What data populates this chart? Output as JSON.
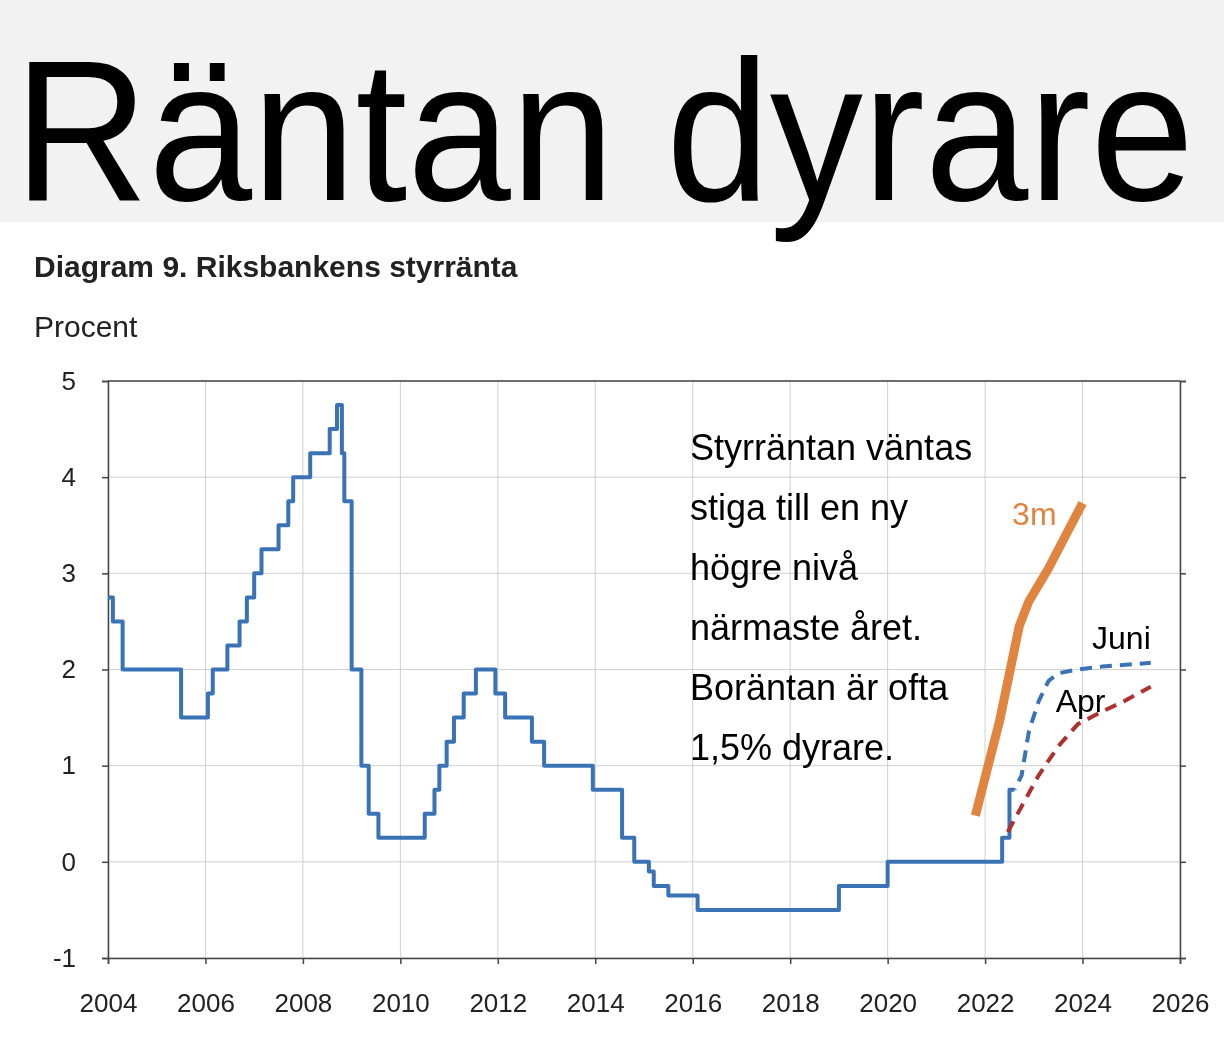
{
  "chart_data": {
    "type": "line",
    "title": "Räntan dyrare",
    "subtitle": "Diagram 9. Riksbankens styrränta",
    "ylabel": "Procent",
    "xlim": [
      2004,
      2026
    ],
    "xticks": [
      2004,
      2006,
      2008,
      2010,
      2012,
      2014,
      2016,
      2018,
      2020,
      2022,
      2024,
      2026
    ],
    "ylim": [
      -1,
      5
    ],
    "yticks": [
      -1,
      0,
      1,
      2,
      3,
      4,
      5
    ],
    "grid": true,
    "series": [
      {
        "type": "step",
        "color": "#3a73b5",
        "line_style": "solid",
        "x": [
          2004.0,
          2004.1,
          2004.3,
          2005.5,
          2006.05,
          2006.15,
          2006.45,
          2006.7,
          2006.85,
          2007.0,
          2007.15,
          2007.5,
          2007.7,
          2007.8,
          2008.15,
          2008.55,
          2008.7,
          2008.8,
          2008.85,
          2009.0,
          2009.2,
          2009.35,
          2009.55,
          2010.5,
          2010.7,
          2010.8,
          2010.95,
          2011.1,
          2011.3,
          2011.55,
          2011.95,
          2012.15,
          2012.7,
          2012.95,
          2013.95,
          2014.55,
          2014.8,
          2015.1,
          2015.2,
          2015.5,
          2016.1,
          2019.0,
          2020.0,
          2022.35,
          2022.5,
          2022.6
        ],
        "values": [
          2.75,
          2.5,
          2.0,
          1.5,
          1.75,
          2.0,
          2.25,
          2.5,
          2.75,
          3.0,
          3.25,
          3.5,
          3.75,
          4.0,
          4.25,
          4.5,
          4.75,
          4.25,
          3.75,
          2.0,
          1.0,
          0.5,
          0.25,
          0.5,
          0.75,
          1.0,
          1.25,
          1.5,
          1.75,
          2.0,
          1.75,
          1.5,
          1.25,
          1.0,
          0.75,
          0.25,
          0.0,
          -0.1,
          -0.25,
          -0.35,
          -0.5,
          -0.25,
          0.0,
          0.25,
          0.75,
          0.75
        ]
      },
      {
        "type": "line",
        "name": "Apr",
        "color": "#b03030",
        "line_style": "dashed",
        "x": [
          2022.4,
          2022.7,
          2023.1,
          2023.5,
          2023.9,
          2024.35,
          2024.85,
          2025.4
        ],
        "values": [
          0.25,
          0.53,
          0.9,
          1.2,
          1.43,
          1.55,
          1.67,
          1.82
        ]
      },
      {
        "type": "line",
        "name": "Juni",
        "color": "#3a73b5",
        "line_style": "dashed",
        "x": [
          2022.6,
          2022.75,
          2022.9,
          2023.1,
          2023.3,
          2023.5,
          2023.9,
          2024.4,
          2025.4
        ],
        "values": [
          0.75,
          0.9,
          1.36,
          1.67,
          1.88,
          1.96,
          2.0,
          2.03,
          2.07
        ]
      },
      {
        "type": "line",
        "name": "3m",
        "color": "#e0843f",
        "line_style": "solid",
        "x": [
          2021.8,
          2022.3,
          2022.7,
          2022.9,
          2023.3,
          2023.7,
          2024.0
        ],
        "values": [
          0.48,
          1.47,
          2.45,
          2.71,
          3.05,
          3.44,
          3.73
        ]
      }
    ],
    "annotations": [
      "Styrräntan väntas stiga till en ny högre nivå närmaste året.",
      "Boräntan är ofta 1,5% dyrare."
    ]
  }
}
